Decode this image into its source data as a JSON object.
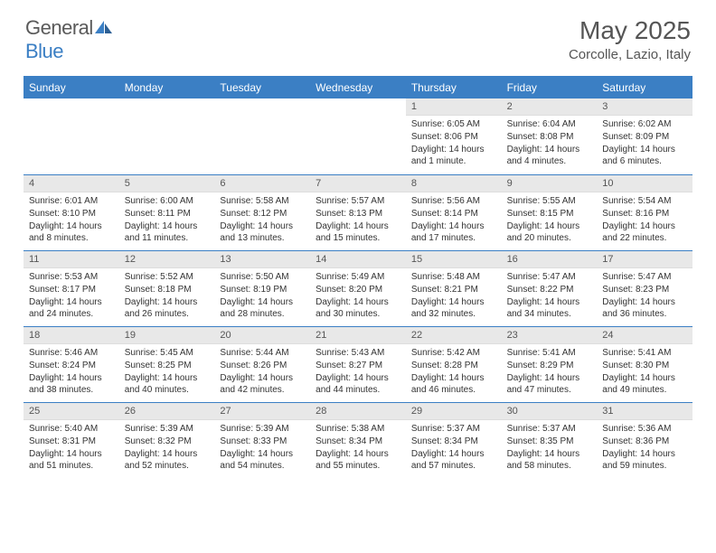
{
  "logo": {
    "text1": "General",
    "text2": "Blue"
  },
  "title": {
    "month": "May 2025",
    "location": "Corcolle, Lazio, Italy"
  },
  "colors": {
    "accent": "#3b7fc4",
    "cellHeader": "#e8e8e8",
    "text": "#333333"
  },
  "dayNames": [
    "Sunday",
    "Monday",
    "Tuesday",
    "Wednesday",
    "Thursday",
    "Friday",
    "Saturday"
  ],
  "grid": {
    "rows": 5,
    "cols": 7,
    "startOffset": 4,
    "daysInMonth": 31
  },
  "days": {
    "1": {
      "sunrise": "6:05 AM",
      "sunset": "8:06 PM",
      "daylight": "14 hours and 1 minute."
    },
    "2": {
      "sunrise": "6:04 AM",
      "sunset": "8:08 PM",
      "daylight": "14 hours and 4 minutes."
    },
    "3": {
      "sunrise": "6:02 AM",
      "sunset": "8:09 PM",
      "daylight": "14 hours and 6 minutes."
    },
    "4": {
      "sunrise": "6:01 AM",
      "sunset": "8:10 PM",
      "daylight": "14 hours and 8 minutes."
    },
    "5": {
      "sunrise": "6:00 AM",
      "sunset": "8:11 PM",
      "daylight": "14 hours and 11 minutes."
    },
    "6": {
      "sunrise": "5:58 AM",
      "sunset": "8:12 PM",
      "daylight": "14 hours and 13 minutes."
    },
    "7": {
      "sunrise": "5:57 AM",
      "sunset": "8:13 PM",
      "daylight": "14 hours and 15 minutes."
    },
    "8": {
      "sunrise": "5:56 AM",
      "sunset": "8:14 PM",
      "daylight": "14 hours and 17 minutes."
    },
    "9": {
      "sunrise": "5:55 AM",
      "sunset": "8:15 PM",
      "daylight": "14 hours and 20 minutes."
    },
    "10": {
      "sunrise": "5:54 AM",
      "sunset": "8:16 PM",
      "daylight": "14 hours and 22 minutes."
    },
    "11": {
      "sunrise": "5:53 AM",
      "sunset": "8:17 PM",
      "daylight": "14 hours and 24 minutes."
    },
    "12": {
      "sunrise": "5:52 AM",
      "sunset": "8:18 PM",
      "daylight": "14 hours and 26 minutes."
    },
    "13": {
      "sunrise": "5:50 AM",
      "sunset": "8:19 PM",
      "daylight": "14 hours and 28 minutes."
    },
    "14": {
      "sunrise": "5:49 AM",
      "sunset": "8:20 PM",
      "daylight": "14 hours and 30 minutes."
    },
    "15": {
      "sunrise": "5:48 AM",
      "sunset": "8:21 PM",
      "daylight": "14 hours and 32 minutes."
    },
    "16": {
      "sunrise": "5:47 AM",
      "sunset": "8:22 PM",
      "daylight": "14 hours and 34 minutes."
    },
    "17": {
      "sunrise": "5:47 AM",
      "sunset": "8:23 PM",
      "daylight": "14 hours and 36 minutes."
    },
    "18": {
      "sunrise": "5:46 AM",
      "sunset": "8:24 PM",
      "daylight": "14 hours and 38 minutes."
    },
    "19": {
      "sunrise": "5:45 AM",
      "sunset": "8:25 PM",
      "daylight": "14 hours and 40 minutes."
    },
    "20": {
      "sunrise": "5:44 AM",
      "sunset": "8:26 PM",
      "daylight": "14 hours and 42 minutes."
    },
    "21": {
      "sunrise": "5:43 AM",
      "sunset": "8:27 PM",
      "daylight": "14 hours and 44 minutes."
    },
    "22": {
      "sunrise": "5:42 AM",
      "sunset": "8:28 PM",
      "daylight": "14 hours and 46 minutes."
    },
    "23": {
      "sunrise": "5:41 AM",
      "sunset": "8:29 PM",
      "daylight": "14 hours and 47 minutes."
    },
    "24": {
      "sunrise": "5:41 AM",
      "sunset": "8:30 PM",
      "daylight": "14 hours and 49 minutes."
    },
    "25": {
      "sunrise": "5:40 AM",
      "sunset": "8:31 PM",
      "daylight": "14 hours and 51 minutes."
    },
    "26": {
      "sunrise": "5:39 AM",
      "sunset": "8:32 PM",
      "daylight": "14 hours and 52 minutes."
    },
    "27": {
      "sunrise": "5:39 AM",
      "sunset": "8:33 PM",
      "daylight": "14 hours and 54 minutes."
    },
    "28": {
      "sunrise": "5:38 AM",
      "sunset": "8:34 PM",
      "daylight": "14 hours and 55 minutes."
    },
    "29": {
      "sunrise": "5:37 AM",
      "sunset": "8:34 PM",
      "daylight": "14 hours and 57 minutes."
    },
    "30": {
      "sunrise": "5:37 AM",
      "sunset": "8:35 PM",
      "daylight": "14 hours and 58 minutes."
    },
    "31": {
      "sunrise": "5:36 AM",
      "sunset": "8:36 PM",
      "daylight": "14 hours and 59 minutes."
    }
  },
  "labels": {
    "sunrise": "Sunrise: ",
    "sunset": "Sunset: ",
    "daylight": "Daylight: "
  }
}
